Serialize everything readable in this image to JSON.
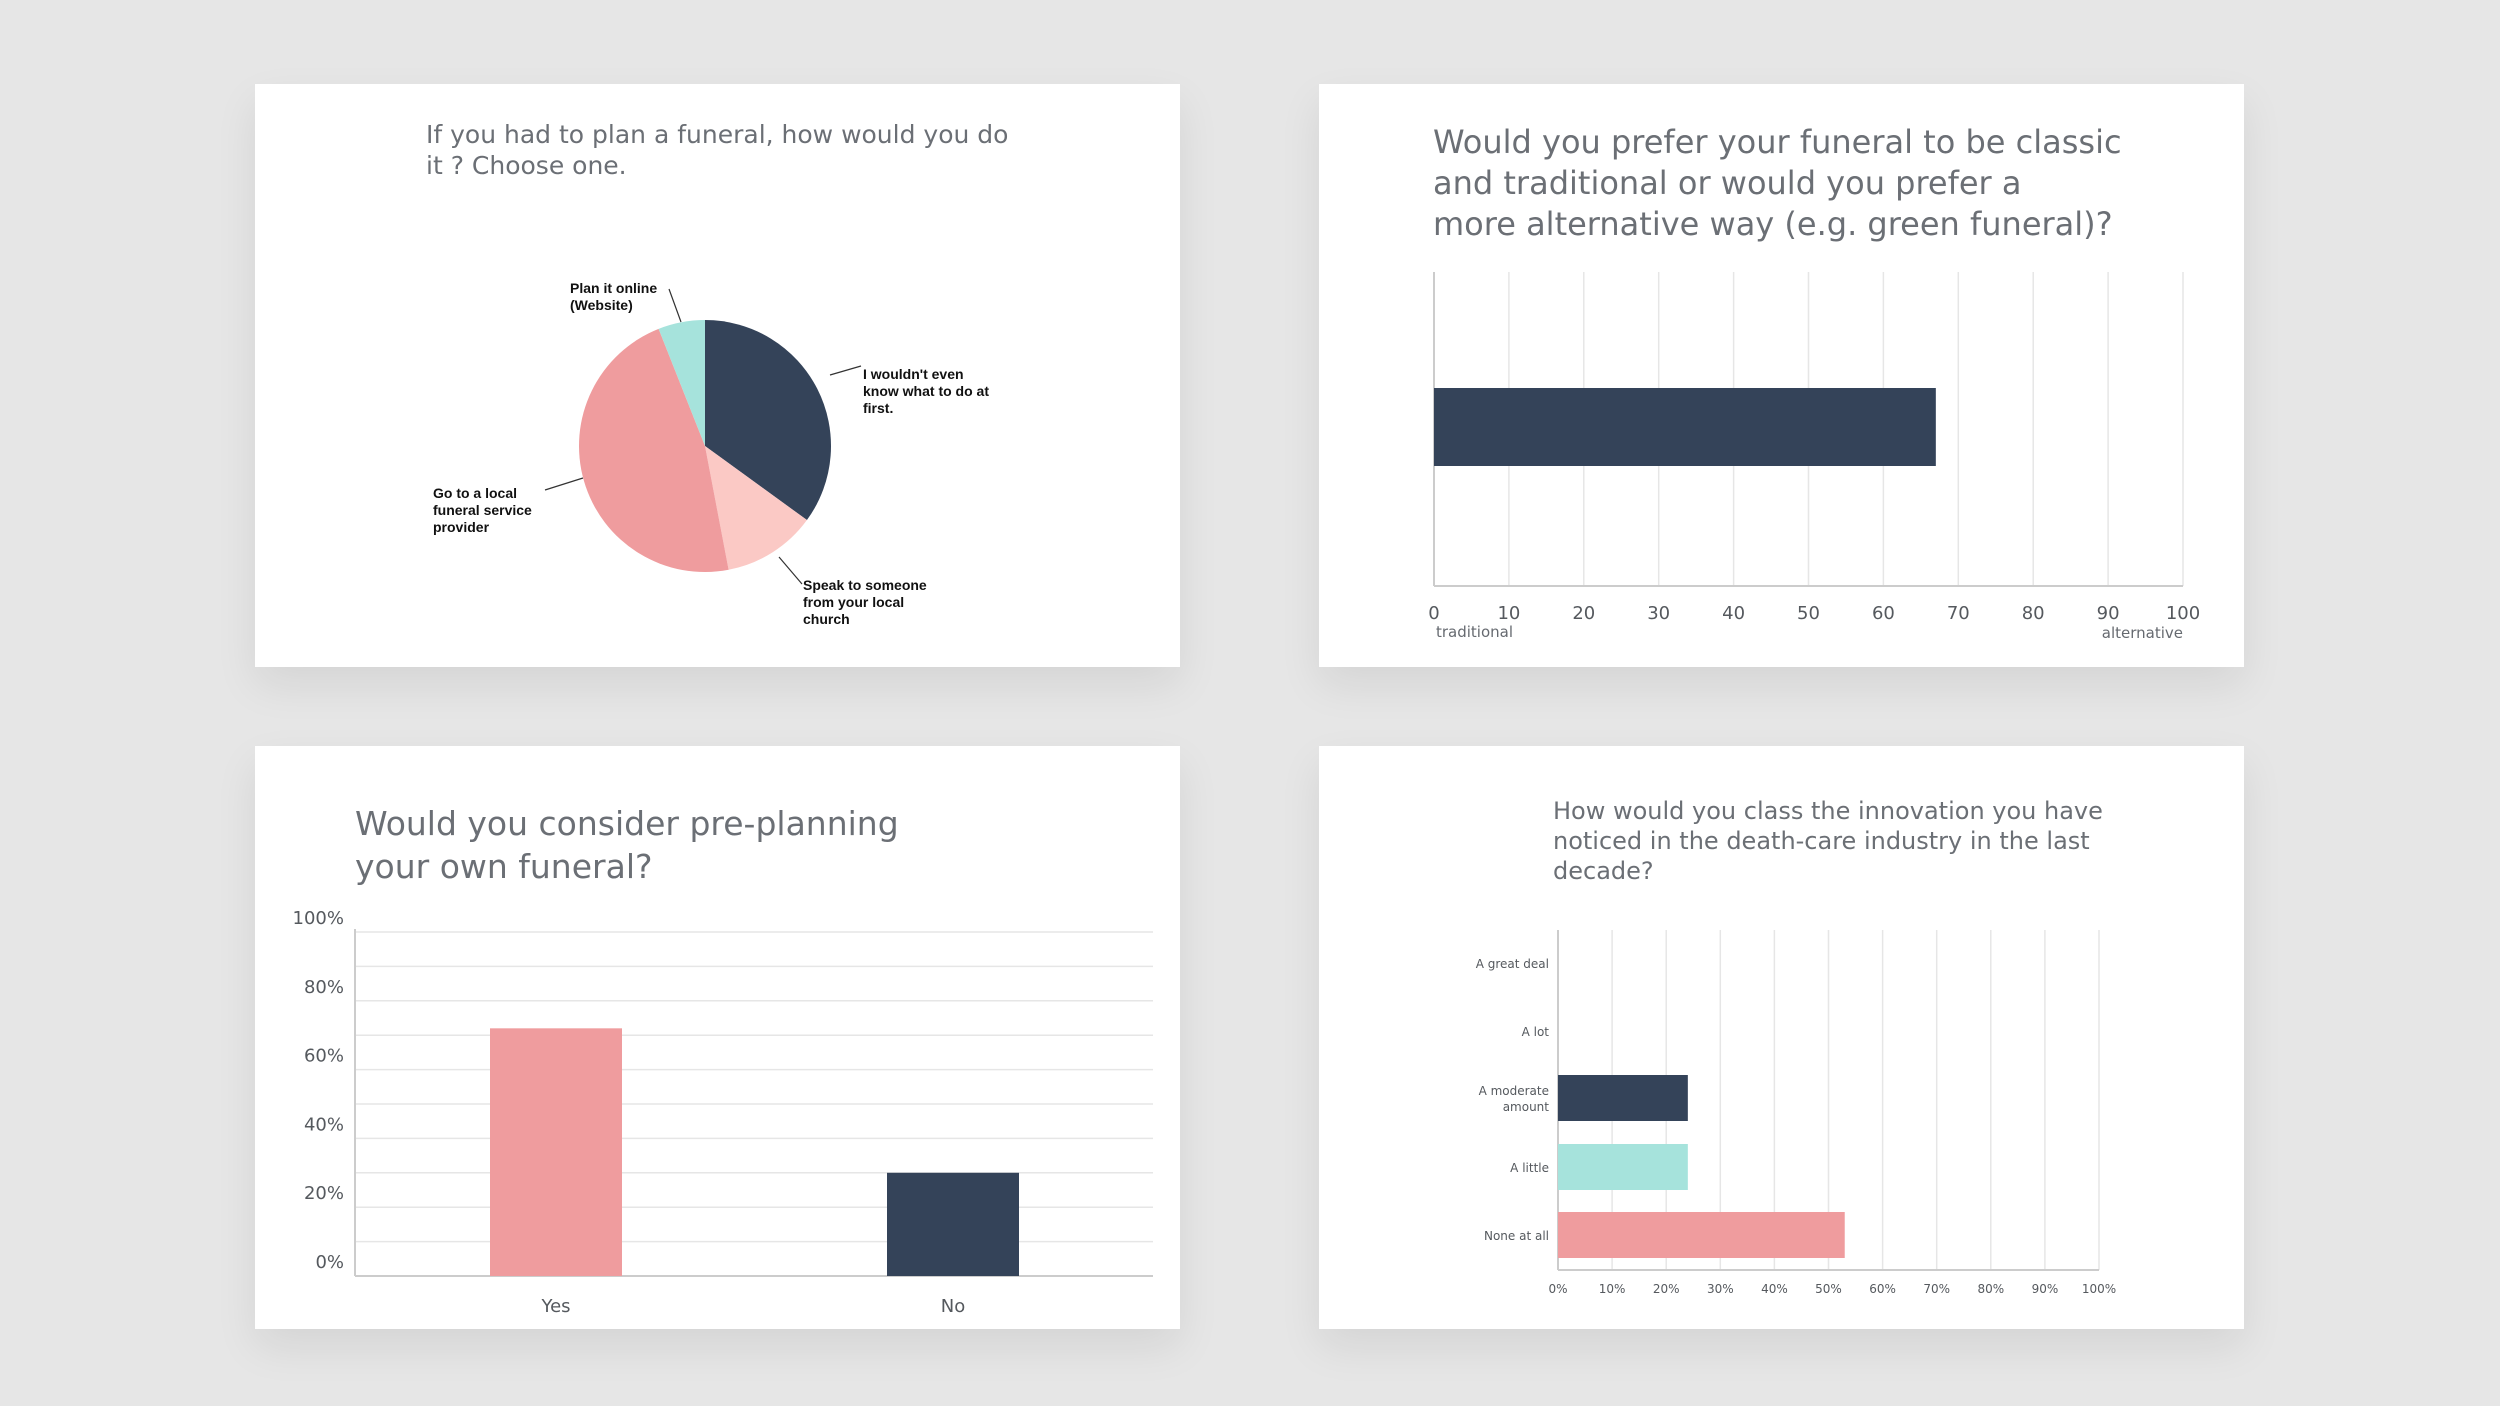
{
  "colors": {
    "navy": "#344359",
    "pink": "#ef9c9e",
    "lightpink": "#fbc9c5",
    "teal": "#a6e3dc",
    "grid": "#e6e6e6",
    "axis": "#cccccc"
  },
  "chart_data": [
    {
      "type": "pie",
      "title_lines": [
        "If you had to plan a funeral, how would you do",
        "it ? Choose one."
      ],
      "slices": [
        {
          "label_lines": [
            "I wouldn't even",
            "know what to do at",
            "first."
          ],
          "value": 35,
          "color": "#344359"
        },
        {
          "label_lines": [
            "Speak to someone",
            "from your local",
            "church"
          ],
          "value": 12,
          "color": "#fbc9c5"
        },
        {
          "label_lines": [
            "Go to a local",
            "funeral service",
            "provider"
          ],
          "value": 47,
          "color": "#ef9c9e"
        },
        {
          "label_lines": [
            "Plan it online",
            "(Website)"
          ],
          "value": 6,
          "color": "#a6e3dc"
        }
      ]
    },
    {
      "type": "bar",
      "orientation": "horizontal",
      "title_lines": [
        "Would you prefer your funeral to be classic",
        "and traditional or would you prefer a",
        "more alternative way (e.g. green funeral)?"
      ],
      "values": [
        67
      ],
      "color": "#344359",
      "xlim": [
        0,
        100
      ],
      "xticks": [
        "0",
        "10",
        "20",
        "30",
        "40",
        "50",
        "60",
        "70",
        "80",
        "90",
        "100"
      ],
      "xlabel_left": "traditional",
      "xlabel_right": "alternative"
    },
    {
      "type": "bar",
      "orientation": "vertical",
      "title_lines": [
        "Would you consider pre-planning",
        "your own funeral?"
      ],
      "categories": [
        "Yes",
        "No"
      ],
      "values": [
        72,
        30
      ],
      "colors": [
        "#ef9c9e",
        "#344359"
      ],
      "ylim": [
        0,
        100
      ],
      "yticks": [
        "0%",
        "20%",
        "40%",
        "60%",
        "80%",
        "100%"
      ]
    },
    {
      "type": "bar",
      "orientation": "horizontal",
      "title_lines": [
        "How would you class the innovation you have",
        "noticed in the death-care industry in the last",
        "decade?"
      ],
      "categories": [
        [
          "A great deal"
        ],
        [
          "A lot"
        ],
        [
          "A moderate",
          "amount"
        ],
        [
          "A little"
        ],
        [
          "None at all"
        ]
      ],
      "values": [
        0,
        0,
        24,
        24,
        53
      ],
      "colors": [
        "#344359",
        "#344359",
        "#344359",
        "#a6e3dc",
        "#ef9c9e"
      ],
      "xlim": [
        0,
        100
      ],
      "xticks": [
        "0%",
        "10%",
        "20%",
        "30%",
        "40%",
        "50%",
        "60%",
        "70%",
        "80%",
        "90%",
        "100%"
      ]
    }
  ]
}
